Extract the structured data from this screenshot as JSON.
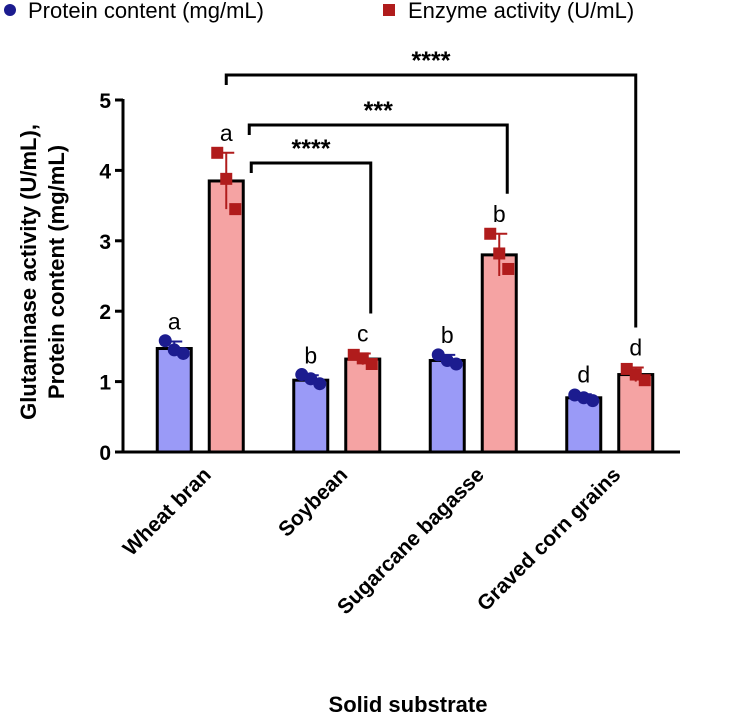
{
  "chart_data": {
    "type": "bar",
    "y_label": [
      "Glutaminase activity (U/mL),",
      "Protein content (mg/mL)"
    ],
    "x_label": "Solid substrate",
    "categories": [
      "Wheat bran",
      "Soybean",
      "Sugarcane bagasse",
      "Graved corn grains"
    ],
    "series": [
      {
        "name": "Protein content (mg/mL)",
        "color": "#9a9af7",
        "point_color": "#1c1c8f",
        "values": [
          1.47,
          1.02,
          1.3,
          0.77
        ],
        "errors": [
          0.1,
          0.07,
          0.08,
          0.05
        ],
        "points": [
          [
            1.58,
            1.45,
            1.4
          ],
          [
            1.1,
            1.04,
            0.97
          ],
          [
            1.38,
            1.3,
            1.25
          ],
          [
            0.81,
            0.77,
            0.73
          ]
        ],
        "letters": [
          "a",
          "b",
          "b",
          "d"
        ]
      },
      {
        "name": "Enzyme activity (U/mL)",
        "color": "#f5a3a3",
        "point_color": "#b01c1c",
        "values": [
          3.85,
          1.32,
          2.8,
          1.1
        ],
        "errors": [
          0.4,
          0.08,
          0.3,
          0.1
        ],
        "points": [
          [
            4.25,
            3.88,
            3.45
          ],
          [
            1.38,
            1.33,
            1.25
          ],
          [
            3.1,
            2.82,
            2.6
          ],
          [
            1.18,
            1.1,
            1.02
          ]
        ],
        "letters": [
          "a",
          "c",
          "b",
          "d"
        ]
      }
    ],
    "comparisons": [
      {
        "from": 0,
        "to": 3,
        "label": "****"
      },
      {
        "from": 0,
        "to": 2,
        "label": "***"
      },
      {
        "from": 0,
        "to": 1,
        "label": "****"
      }
    ],
    "ylim": [
      0,
      5
    ],
    "yticks": [
      0,
      1,
      2,
      3,
      4,
      5
    ]
  }
}
